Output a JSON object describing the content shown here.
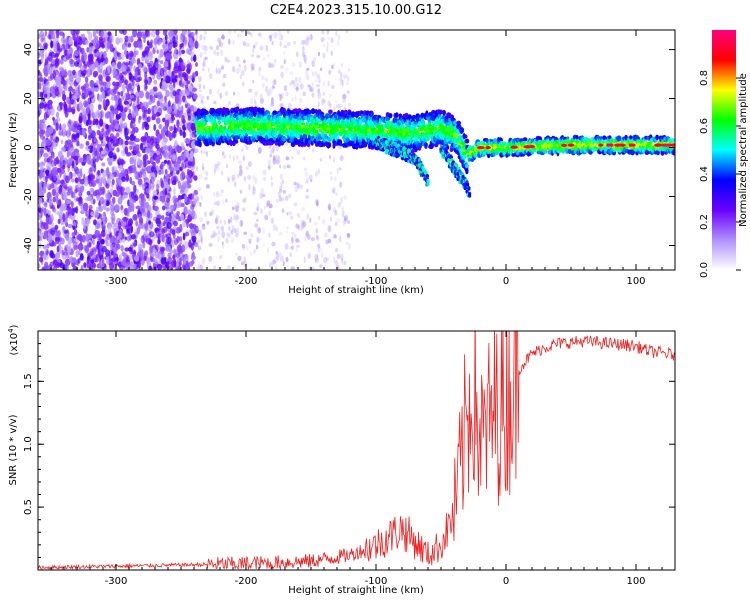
{
  "figure_title": "C2E4.2023.315.10.00.G12",
  "chart_data": [
    {
      "type": "heatmap",
      "title": "",
      "xlabel": "Height of straight line (km)",
      "ylabel": "Frequency (Hz)",
      "xlim": [
        -360,
        130
      ],
      "ylim": [
        -50,
        48
      ],
      "x_ticks": [
        -300,
        -200,
        -100,
        0,
        100
      ],
      "x_tick_labels": [
        "-300",
        "-200",
        "-100",
        "0",
        "100"
      ],
      "y_ticks": [
        -40,
        -20,
        0,
        20,
        40
      ],
      "y_tick_labels": [
        "-40",
        "-20",
        "0",
        "20",
        "40"
      ],
      "colorbar": {
        "label": "Normalized spectral amplitude",
        "range": [
          0,
          1
        ],
        "ticks": [
          0.0,
          0.2,
          0.4,
          0.6,
          0.8
        ],
        "tick_labels": [
          "0.0",
          "0.2",
          "0.4",
          "0.6",
          "0.8"
        ],
        "colormap": [
          "#ffffff",
          "#b090ff",
          "#6a00ff",
          "#0000ff",
          "#00ffff",
          "#00ff00",
          "#ffff00",
          "#ff0000",
          "#ff007f"
        ]
      },
      "features": {
        "noise_region_x": [
          -360,
          -238
        ],
        "main_trace": [
          {
            "x": -235,
            "freq": 8
          },
          {
            "x": -200,
            "freq": 9
          },
          {
            "x": -150,
            "freq": 8
          },
          {
            "x": -100,
            "freq": 7
          },
          {
            "x": -70,
            "freq": 6
          },
          {
            "x": -50,
            "freq": 8
          },
          {
            "x": -38,
            "freq": 5
          },
          {
            "x": -30,
            "freq": -3
          },
          {
            "x": -20,
            "freq": 0
          },
          {
            "x": 0,
            "freq": 0
          },
          {
            "x": 50,
            "freq": 1
          },
          {
            "x": 100,
            "freq": 1
          },
          {
            "x": 130,
            "freq": 1
          }
        ],
        "secondary_traces": [
          [
            {
              "x": -100,
              "freq": 2
            },
            {
              "x": -70,
              "freq": -4
            },
            {
              "x": -60,
              "freq": -14
            }
          ],
          [
            {
              "x": -50,
              "freq": 0
            },
            {
              "x": -40,
              "freq": -8
            },
            {
              "x": -28,
              "freq": -18
            }
          ]
        ]
      }
    },
    {
      "type": "line",
      "title": "",
      "xlabel": "Height of straight line (km)",
      "ylabel": "SNR (10 * v/v)",
      "y_multiplier_label": "(x10",
      "y_multiplier_exp": "4",
      "xlim": [
        -360,
        130
      ],
      "ylim": [
        0,
        1.9
      ],
      "x_ticks": [
        -300,
        -200,
        -100,
        0,
        100
      ],
      "x_tick_labels": [
        "-300",
        "-200",
        "-100",
        "0",
        "100"
      ],
      "y_ticks": [
        0.5,
        1.0,
        1.5
      ],
      "y_tick_labels": [
        "0.5",
        "1.0",
        "1.5"
      ],
      "series": [
        {
          "color": "#ee2222",
          "x": [
            -360,
            -300,
            -250,
            -200,
            -150,
            -120,
            -100,
            -80,
            -60,
            -50,
            -40,
            -35,
            -30,
            -25,
            -20,
            -15,
            -10,
            0,
            10,
            20,
            30,
            40,
            60,
            80,
            100,
            110,
            130
          ],
          "y": [
            0.02,
            0.03,
            0.04,
            0.05,
            0.07,
            0.12,
            0.2,
            0.33,
            0.12,
            0.2,
            0.45,
            0.8,
            1.2,
            1.5,
            1.0,
            1.1,
            1.25,
            1.35,
            1.6,
            1.72,
            1.77,
            1.8,
            1.82,
            1.8,
            1.78,
            1.74,
            1.71
          ]
        }
      ]
    }
  ]
}
